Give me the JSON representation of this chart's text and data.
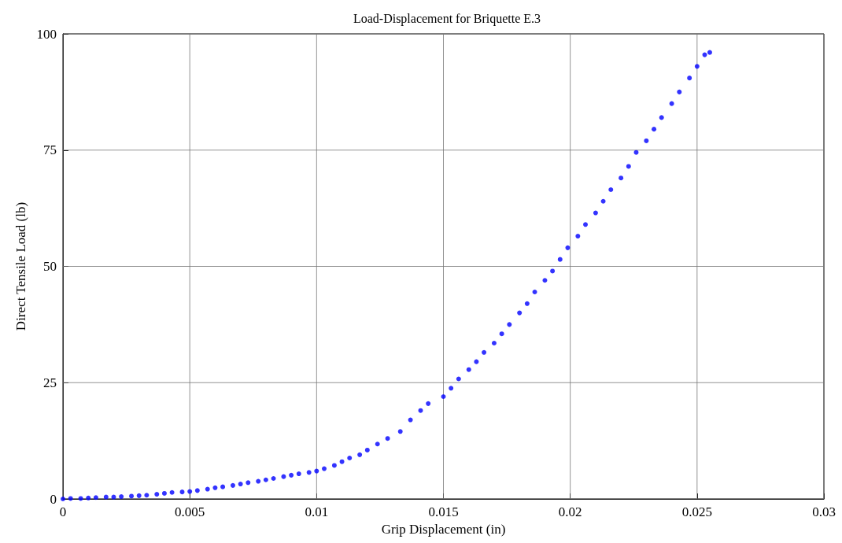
{
  "chart_data": {
    "type": "scatter",
    "title": "Load-Displacement for Briquette E.3",
    "xlabel": "Grip Displacement (in)",
    "ylabel": "Direct Tensile Load (lb)",
    "x": [
      0,
      0.0003,
      0.0007,
      0.001,
      0.0013,
      0.0017,
      0.002,
      0.0023,
      0.0027,
      0.003,
      0.0033,
      0.0037,
      0.004,
      0.0043,
      0.0047,
      0.005,
      0.0053,
      0.0057,
      0.006,
      0.0063,
      0.0067,
      0.007,
      0.0073,
      0.0077,
      0.008,
      0.0083,
      0.0087,
      0.009,
      0.0093,
      0.0097,
      0.01,
      0.0103,
      0.0107,
      0.011,
      0.0113,
      0.0117,
      0.012,
      0.0124,
      0.0128,
      0.0133,
      0.0137,
      0.0141,
      0.0144,
      0.015,
      0.0153,
      0.0156,
      0.016,
      0.0163,
      0.0166,
      0.017,
      0.0173,
      0.0176,
      0.018,
      0.0183,
      0.0186,
      0.019,
      0.0193,
      0.0196,
      0.0199,
      0.0203,
      0.0206,
      0.021,
      0.0213,
      0.0216,
      0.022,
      0.0223,
      0.0226,
      0.023,
      0.0233,
      0.0236,
      0.024,
      0.0243,
      0.0247,
      0.025,
      0.0253,
      0.0255
    ],
    "series": [
      {
        "color": "#0000ff",
        "values": [
          0,
          0.1,
          0.1,
          0.2,
          0.3,
          0.4,
          0.4,
          0.5,
          0.6,
          0.7,
          0.8,
          1.0,
          1.2,
          1.4,
          1.5,
          1.6,
          1.8,
          2.1,
          2.4,
          2.6,
          2.9,
          3.2,
          3.5,
          3.8,
          4.1,
          4.4,
          4.8,
          5.1,
          5.4,
          5.7,
          6.0,
          6.5,
          7.2,
          8.0,
          8.8,
          9.5,
          10.5,
          11.8,
          13.0,
          14.5,
          17.0,
          19.0,
          20.5,
          22.0,
          23.8,
          25.8,
          27.8,
          29.5,
          31.5,
          33.5,
          35.5,
          37.5,
          40.0,
          42.0,
          44.5,
          47.0,
          49.0,
          51.5,
          54.0,
          56.5,
          59.0,
          61.5,
          64.0,
          66.5,
          69.0,
          71.5,
          74.5,
          77.0,
          79.5,
          82.0,
          85.0,
          87.5,
          90.5,
          93.0,
          95.5,
          96.0
        ]
      }
    ],
    "xlim": [
      0,
      0.03
    ],
    "xticks": [
      0,
      0.005,
      0.01,
      0.015,
      0.02,
      0.025,
      0.03
    ],
    "ylim": [
      0,
      100
    ],
    "yticks": [
      0,
      25,
      50,
      75,
      100
    ],
    "grid": true,
    "marker": "circle"
  }
}
